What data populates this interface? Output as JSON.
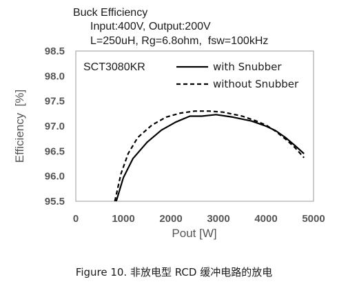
{
  "chart_data": {
    "type": "line",
    "title_lines": [
      "Buck Efficiency",
      "Input:400V, Output:200V",
      "L=250uH, Rg=6.8ohm,  fsw=100kHz"
    ],
    "annotation": "SCT3080KR",
    "xlabel": "Pout [W]",
    "ylabel": "Efficiency  [%]",
    "xlim": [
      0,
      5000
    ],
    "ylim": [
      95.5,
      98.5
    ],
    "xticks": [
      0,
      1000,
      2000,
      3000,
      4000,
      5000
    ],
    "yticks": [
      95.5,
      96.0,
      96.5,
      97.0,
      97.5,
      98.0,
      98.5
    ],
    "xtick_labels": [
      "0",
      "1000",
      "2000",
      "3000",
      "4000",
      "5000"
    ],
    "ytick_labels": [
      "95.5",
      "96.0",
      "96.5",
      "97.0",
      "97.5",
      "98.0",
      "98.5"
    ],
    "grid": false,
    "legend_position": "top-right",
    "series": [
      {
        "name": "with Snubber",
        "style": "solid",
        "color": "#000000",
        "points": [
          [
            850,
            95.5
          ],
          [
            1000,
            95.97
          ],
          [
            1200,
            96.35
          ],
          [
            1500,
            96.68
          ],
          [
            1800,
            96.92
          ],
          [
            2100,
            97.08
          ],
          [
            2400,
            97.2
          ],
          [
            2650,
            97.2
          ],
          [
            2950,
            97.23
          ],
          [
            3300,
            97.18
          ],
          [
            3700,
            97.1
          ],
          [
            4000,
            97.0
          ],
          [
            4200,
            96.91
          ],
          [
            4400,
            96.78
          ],
          [
            4600,
            96.62
          ],
          [
            4800,
            96.45
          ]
        ]
      },
      {
        "name": "without Snubber",
        "style": "dashed",
        "color": "#000000",
        "points": [
          [
            820,
            95.5
          ],
          [
            950,
            96.05
          ],
          [
            1100,
            96.45
          ],
          [
            1300,
            96.77
          ],
          [
            1600,
            97.02
          ],
          [
            1900,
            97.18
          ],
          [
            2200,
            97.26
          ],
          [
            2500,
            97.3
          ],
          [
            2800,
            97.3
          ],
          [
            3100,
            97.28
          ],
          [
            3500,
            97.2
          ],
          [
            3800,
            97.1
          ],
          [
            4000,
            97.02
          ],
          [
            4200,
            96.9
          ],
          [
            4400,
            96.75
          ],
          [
            4600,
            96.58
          ],
          [
            4800,
            96.37
          ]
        ]
      }
    ]
  },
  "caption": "Figure 10. 非放电型 RCD 缓冲电路的放电"
}
